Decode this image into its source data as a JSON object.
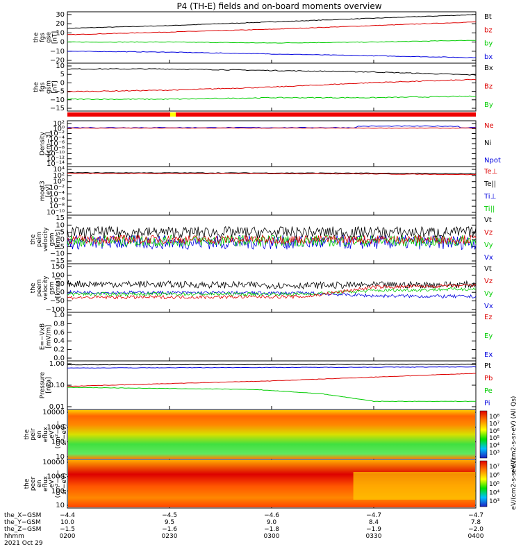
{
  "title": "P4 (TH-E) fields and on-board moments overview",
  "colors": {
    "black": "#000000",
    "red": "#dd0000",
    "green": "#00cc00",
    "blue": "#0000dd"
  },
  "chart_data": {
    "type": "line",
    "time_ticks": [
      "0200",
      "0230",
      "0300",
      "0330",
      "0400"
    ],
    "panels": [
      {
        "id": "fgs-gse",
        "ylabel": [
          "the",
          "fgs",
          "gse",
          "[nT]"
        ],
        "yticks": [
          "30",
          "20",
          "10",
          "0",
          "−10",
          "−20"
        ],
        "ylim": [
          -20,
          30
        ],
        "legend": [
          "Bt",
          "bz",
          "by",
          "bx"
        ],
        "series": [
          {
            "name": "Bt",
            "color": "black",
            "x": [
              0,
              60,
              120,
              180,
              240
            ],
            "y": [
              15,
              18,
              22,
              26,
              30
            ]
          },
          {
            "name": "bz",
            "color": "red",
            "x": [
              0,
              60,
              120,
              180,
              240
            ],
            "y": [
              8,
              11,
              14,
              18,
              22
            ]
          },
          {
            "name": "by",
            "color": "green",
            "x": [
              0,
              60,
              120,
              180,
              240
            ],
            "y": [
              0,
              0,
              -1,
              0,
              2
            ]
          },
          {
            "name": "bx",
            "color": "blue",
            "x": [
              0,
              60,
              120,
              180,
              240
            ],
            "y": [
              -10,
              -11,
              -13,
              -15,
              -17
            ]
          }
        ]
      },
      {
        "id": "fgs-gsm",
        "ylabel": [
          "the",
          "fgs",
          "gsm",
          "[nT]"
        ],
        "yticks": [
          "10",
          "5",
          "0",
          "−5",
          "−10",
          "−15"
        ],
        "ylim": [
          -18,
          10
        ],
        "legend": [
          "Bx",
          "Bz",
          "By"
        ],
        "series": [
          {
            "name": "Bx",
            "color": "black",
            "x": [
              0,
              60,
              120,
              180,
              240
            ],
            "y": [
              8,
              8,
              7,
              6,
              4
            ]
          },
          {
            "name": "Bz",
            "color": "red",
            "x": [
              0,
              60,
              120,
              180,
              240
            ],
            "y": [
              -7,
              -6,
              -4,
              -1,
              1
            ]
          },
          {
            "name": "By",
            "color": "green",
            "x": [
              0,
              60,
              120,
              180,
              240
            ],
            "y": [
              -12,
              -12,
              -11,
              -11,
              -10
            ]
          }
        ]
      },
      {
        "id": "density",
        "ylabel": [
          "Density",
          "[cm−3]"
        ],
        "yticks": [
          "10²",
          "10⁰",
          "10⁻²",
          "10⁻⁴",
          "10⁻⁶",
          "10⁻⁸",
          "10⁻¹⁰",
          "10⁻¹²",
          "10⁻¹⁴"
        ],
        "ylim": [
          -14,
          2
        ],
        "legend": [
          "Ne",
          "Ni",
          "Npot"
        ]
      },
      {
        "id": "temp",
        "ylabel": [
          "moqt3",
          "[eV]"
        ],
        "yticks": [
          "10⁴",
          "10²",
          "10⁰",
          "10⁻²",
          "10⁻⁴",
          "10⁻⁶",
          "10⁻⁸",
          "10⁻¹⁰"
        ],
        "ylim": [
          -10,
          4
        ],
        "legend": [
          "Te⊥",
          "Te||",
          "Ti⊥",
          "Ti||"
        ]
      },
      {
        "id": "peim-vel",
        "ylabel": [
          "the",
          "peim",
          "velocity",
          "gsm",
          "[km/s]"
        ],
        "yticks": [
          "15",
          "10",
          "5",
          "0",
          "−5",
          "−10",
          "−15"
        ],
        "ylim": [
          -15,
          15
        ],
        "legend": [
          "Vt",
          "Vz",
          "Vy",
          "Vx"
        ]
      },
      {
        "id": "peem-vel",
        "ylabel": [
          "the",
          "peem",
          "velocity",
          "gsm",
          "[km/s]"
        ],
        "yticks": [
          "150",
          "100",
          "50",
          "0",
          "−50",
          "−100"
        ],
        "ylim": [
          -100,
          150
        ],
        "legend": [
          "Vt",
          "Vz",
          "Vy",
          "Vx"
        ]
      },
      {
        "id": "efield",
        "ylabel": [
          "E=−VxB",
          "[mV/m]"
        ],
        "yticks": [
          "1.0",
          "0.8",
          "0.6",
          "0.4",
          "0.2",
          "0.0"
        ],
        "ylim": [
          0,
          1
        ],
        "legend": [
          "Ez",
          "Ey",
          "Ex"
        ]
      },
      {
        "id": "pressure",
        "ylabel": [
          "Pressure",
          "[nPa]"
        ],
        "yticks": [
          "1.00",
          "0.10",
          "0.01"
        ],
        "ylim": [
          -2,
          0
        ],
        "legend": [
          "Pt",
          "Pb",
          "Pe",
          "Pi"
        ]
      },
      {
        "id": "peir",
        "ylabel": [
          "the",
          "peir",
          "en",
          "eflux",
          "eV",
          "(cm²−s−",
          "sr−eV)"
        ],
        "yticks": [
          "10000",
          "1000",
          "100",
          "10"
        ],
        "colorbar_ticks": [
          "10⁸",
          "10⁷",
          "10⁶",
          "10⁵",
          "10⁴",
          "10³"
        ],
        "colorbar_label": "eV/(cm2-s-sr-eV) (All Qs)"
      },
      {
        "id": "peer",
        "ylabel": [
          "the",
          "peer",
          "en",
          "eflux",
          "eV",
          "(cm²−s−",
          "sr−eV)"
        ],
        "yticks": [
          "10000",
          "1000",
          "100",
          "10"
        ],
        "colorbar_ticks": [
          "10⁷",
          "10⁶",
          "10⁵",
          "10⁴",
          "10³"
        ],
        "colorbar_label": "eV/(cm2-s-sr-eV)"
      }
    ],
    "footer": {
      "labels": [
        "the_X−GSM",
        "the_Y−GSM",
        "the_Z−GSM",
        "hhmm",
        "2021 Oct 29"
      ],
      "rows": [
        [
          "−4.4",
          "−4.5",
          "−4.6",
          "−4.7",
          "−4.7"
        ],
        [
          "10.0",
          "9.5",
          "9.0",
          "8.4",
          "7.8"
        ],
        [
          "−1.5",
          "−1.6",
          "−1.8",
          "−1.9",
          "−2.0"
        ],
        [
          "0200",
          "0230",
          "0300",
          "0330",
          "0400"
        ]
      ]
    }
  }
}
